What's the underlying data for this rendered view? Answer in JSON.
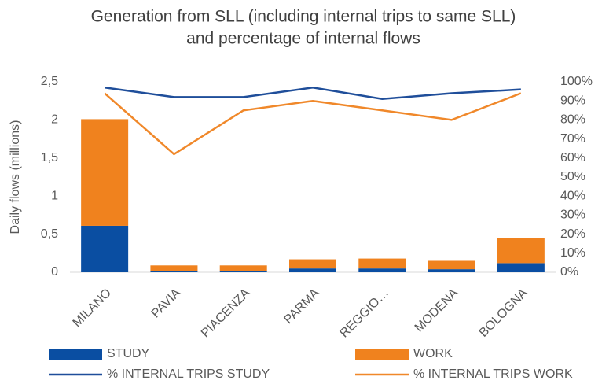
{
  "chart_data": {
    "type": "bar_line",
    "title": [
      "Generation from SLL (including internal trips to same SLL)",
      "and percentage of internal flows"
    ],
    "ylabel": "Daily flows (millions)",
    "categories": [
      "MILANO",
      "PAVIA",
      "PIACENZA",
      "PARMA",
      "REGGIO…",
      "MODENA",
      "BOLOGNA"
    ],
    "series": [
      {
        "name": "STUDY",
        "type": "bar",
        "color": "#0a4ea2",
        "values": [
          0.61,
          0.02,
          0.02,
          0.05,
          0.05,
          0.04,
          0.12
        ]
      },
      {
        "name": "WORK",
        "type": "bar",
        "color": "#f0821e",
        "values": [
          1.4,
          0.07,
          0.07,
          0.12,
          0.13,
          0.11,
          0.33
        ]
      },
      {
        "name": "% INTERNAL TRIPS STUDY",
        "type": "line",
        "axis": "y2",
        "color": "#1f4e9a",
        "values": [
          97,
          92,
          92,
          97,
          91,
          94,
          96
        ]
      },
      {
        "name": "% INTERNAL TRIPS WORK",
        "type": "line",
        "axis": "y2",
        "color": "#f0882a",
        "values": [
          94,
          62,
          85,
          90,
          85,
          80,
          94
        ]
      }
    ],
    "stacked": true,
    "ylim": [
      0,
      2.5
    ],
    "yticks": [
      0,
      {
        "value": 0.5,
        "label": "0,5"
      },
      1,
      {
        "value": 1.5,
        "label": "1,5"
      },
      2,
      {
        "value": 2.5,
        "label": "2,5"
      }
    ],
    "y2lim": [
      0,
      100
    ],
    "y2ticks": [
      {
        "value": 0,
        "label": "0%"
      },
      {
        "value": 10,
        "label": "10%"
      },
      {
        "value": 20,
        "label": "20%"
      },
      {
        "value": 30,
        "label": "30%"
      },
      {
        "value": 40,
        "label": "40%"
      },
      {
        "value": 50,
        "label": "50%"
      },
      {
        "value": 60,
        "label": "60%"
      },
      {
        "value": 70,
        "label": "70%"
      },
      {
        "value": 80,
        "label": "80%"
      },
      {
        "value": 90,
        "label": "90%"
      },
      {
        "value": 100,
        "label": "100%"
      }
    ],
    "grid": false
  }
}
